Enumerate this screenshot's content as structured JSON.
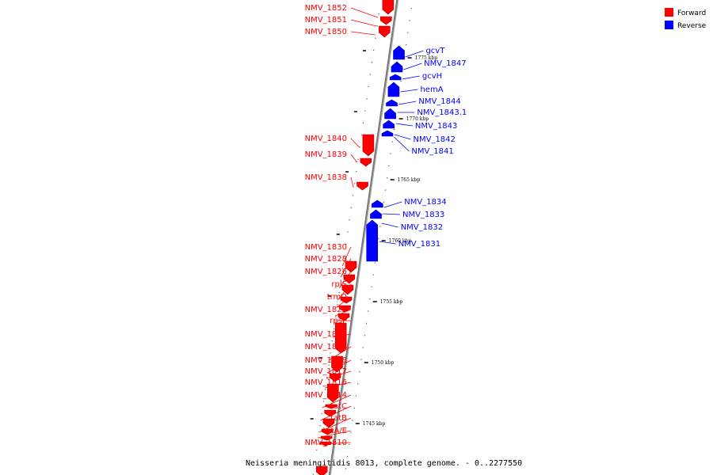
{
  "caption": "Neisseria meningitidis 8013, complete genome. - 0..2277550",
  "legend": [
    {
      "label": "Forward",
      "color": "#ff0000"
    },
    {
      "label": "Reverse",
      "color": "#0000ff"
    }
  ],
  "colors": {
    "forward": "#ff0000",
    "reverse": "#0000ff",
    "axis": "#808080"
  },
  "scale_labels": [
    "1775 kbp",
    "1770 kbp",
    "1765 kbp",
    "1760 kbp",
    "1755 kbp",
    "1750 kbp",
    "1745 kbp"
  ],
  "forward_labels": [
    "NMV_1852",
    "NMV_1851",
    "NMV_1850",
    "NMV_1840",
    "NMV_1839",
    "NMV_1838",
    "NMV_1830",
    "NMV_1828",
    "NMV_1826",
    "rplS",
    "trmD",
    "NMV_1822",
    "rpsP",
    "NMV_1820",
    "NMV_1819",
    "NMV_1818",
    "NMV_1817",
    "NMV_1816",
    "NMV_1814",
    "tatC",
    "tatB",
    "tatA/E",
    "NMV_1810"
  ],
  "reverse_labels": [
    "gcvT",
    "NMV_1847",
    "gcvH",
    "hemA",
    "NMV_1844",
    "NMV_1843.1",
    "NMV_1843",
    "NMV_1842",
    "NMV_1841",
    "NMV_1834",
    "NMV_1833",
    "NMV_1832",
    "NMV_1831"
  ]
}
